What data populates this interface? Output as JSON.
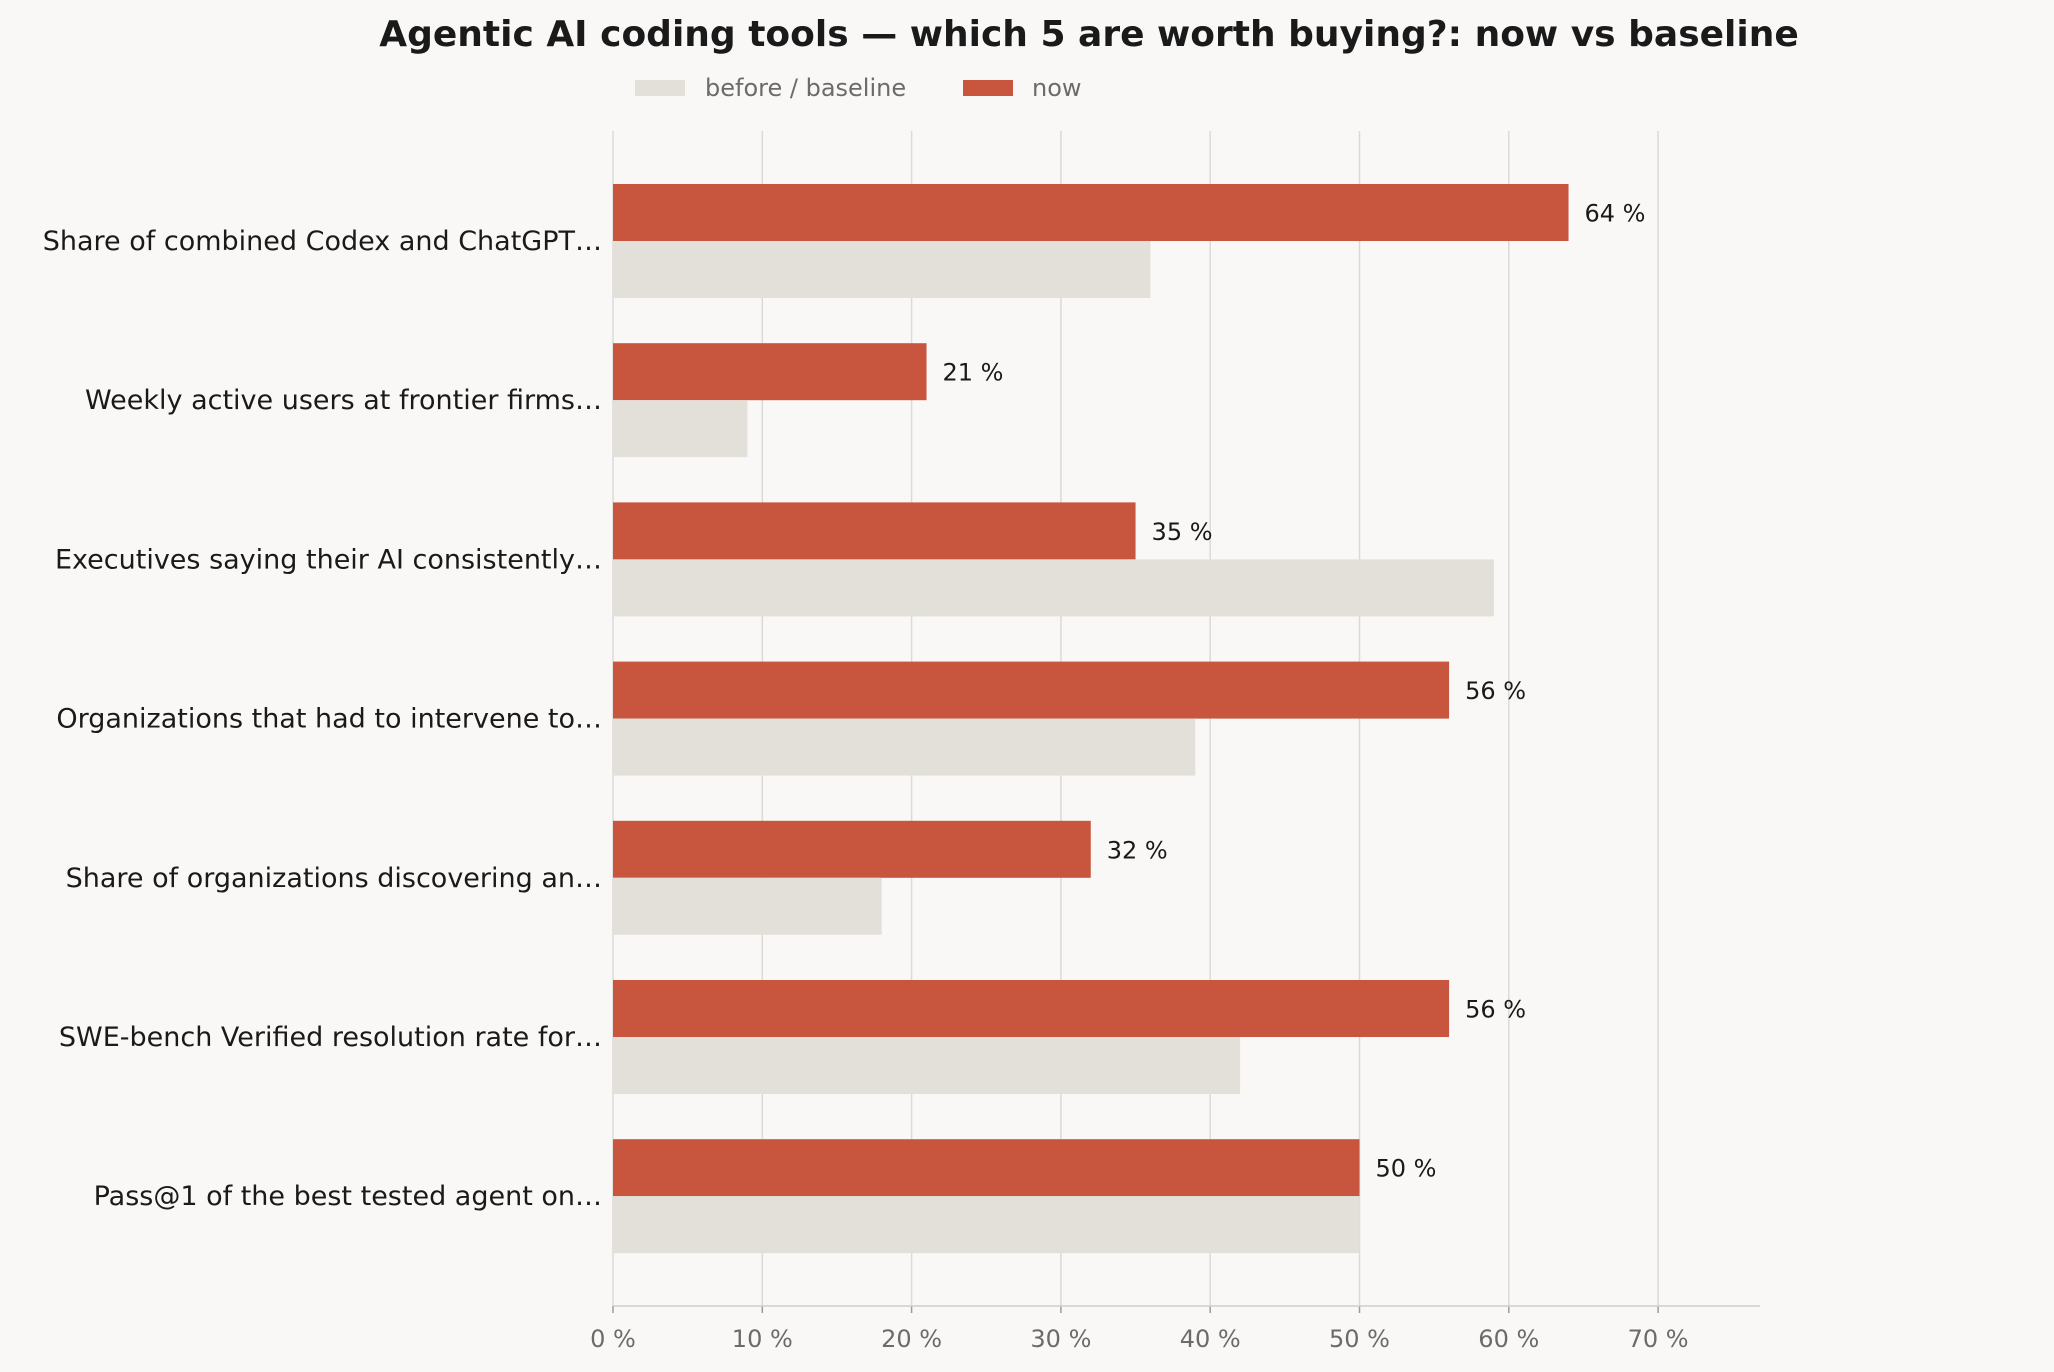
{
  "chart_data": {
    "type": "bar",
    "orientation": "horizontal",
    "title": "Agentic AI coding tools — which 5 are worth buying?: now vs baseline",
    "categories": [
      "Share of combined Codex and ChatGPT…",
      "Weekly active users at frontier firms…",
      "Executives saying their AI consistently…",
      "Organizations that had to intervene to…",
      "Share of organizations discovering an…",
      "SWE-bench Verified resolution rate for…",
      "Pass@1 of the best tested agent on…"
    ],
    "series": [
      {
        "name": "before / baseline",
        "values": [
          36,
          9,
          59,
          39,
          18,
          42,
          50
        ],
        "color": "#e3e0da"
      },
      {
        "name": "now",
        "values": [
          64,
          21,
          35,
          56,
          32,
          56,
          50
        ],
        "color": "#c8553d"
      }
    ],
    "value_labels": [
      "64 %",
      "21 %",
      "35 %",
      "56 %",
      "32 %",
      "56 %",
      "50 %"
    ],
    "xticks": [
      "0 %",
      "10 %",
      "20 %",
      "30 %",
      "40 %",
      "50 %",
      "60 %",
      "70 %"
    ],
    "xlim": [
      0,
      77
    ],
    "xlabel": "",
    "ylabel": "",
    "grid": true,
    "legend_position": "top-left"
  }
}
